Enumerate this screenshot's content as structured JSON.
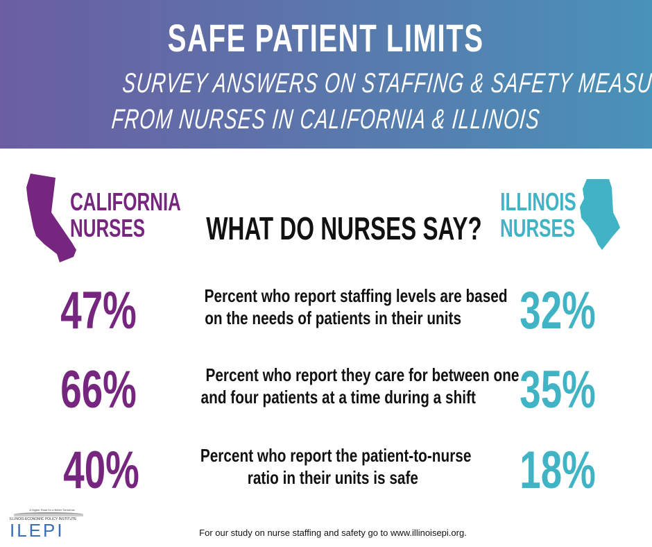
{
  "header": {
    "title": "SAFE PATIENT LIMITS",
    "subtitle_line1": "SURVEY ANSWERS ON STAFFING & SAFETY MEASURES",
    "subtitle_line2": "FROM NURSES IN CALIFORNIA & ILLINOIS"
  },
  "colors": {
    "california": "#76267f",
    "illinois": "#40b3c4"
  },
  "california": {
    "line1": "CALIFORNIA",
    "line2": "NURSES",
    "icon": "california-state-shape"
  },
  "illinois": {
    "line1": "ILLINOIS",
    "line2": "NURSES",
    "icon": "illinois-state-shape"
  },
  "question": "WHAT DO NURSES SAY?",
  "stats": [
    {
      "california": "47%",
      "illinois": "32%",
      "line1": "Percent who report staffing levels are based",
      "line2": "on the needs of patients in their units"
    },
    {
      "california": "66%",
      "illinois": "35%",
      "line1": "Percent who report they care for between one",
      "line2": "and four patients at a time during a shift"
    },
    {
      "california": "40%",
      "illinois": "18%",
      "line1": "Percent who report the patient-to-nurse",
      "line2": "ratio in their units is safe"
    }
  ],
  "logo": {
    "tagline": "A Higher Road for a Better Tomorrow",
    "name": "ILLINOIS ECONOMIC POLICY INSTITUTE",
    "acronym": "ILEPI"
  },
  "footer": "For our study on nurse staffing and safety go to www.illinoisepi.org."
}
